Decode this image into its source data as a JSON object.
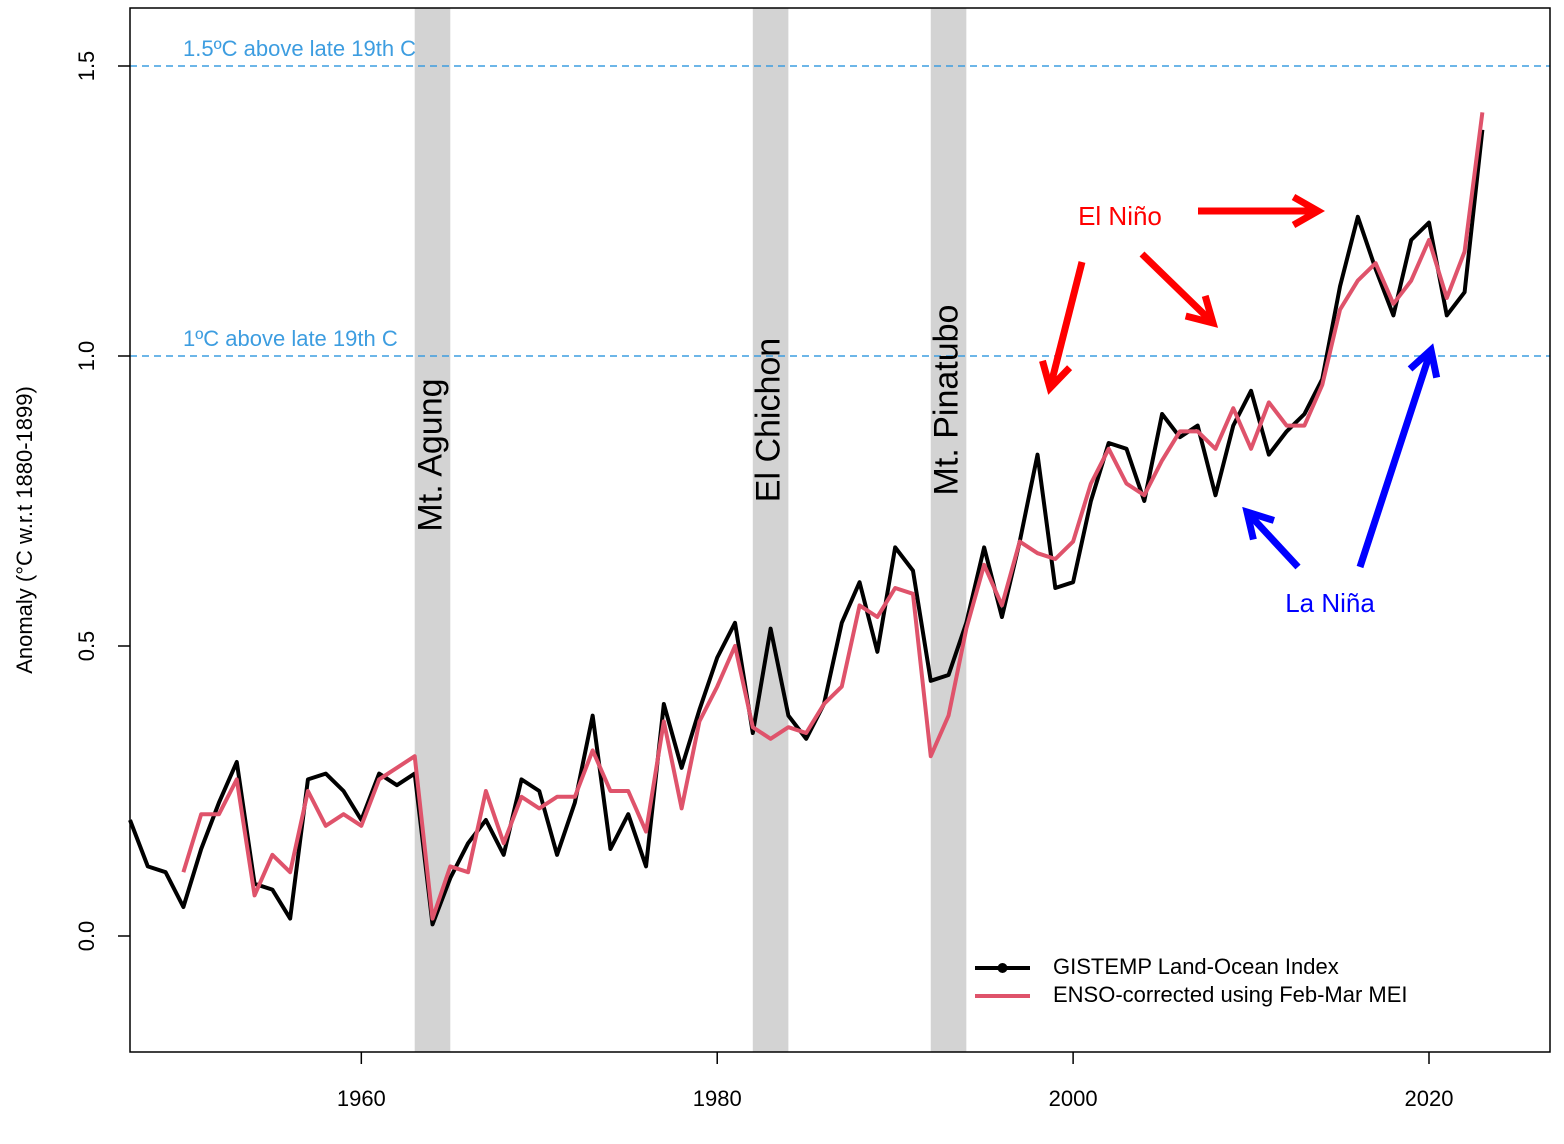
{
  "chart_data": {
    "type": "line",
    "ylabel": "Anomaly (°C w.r.t 1880-1899)",
    "x": [
      1947,
      1948,
      1949,
      1950,
      1951,
      1952,
      1953,
      1954,
      1955,
      1956,
      1957,
      1958,
      1959,
      1960,
      1961,
      1962,
      1963,
      1964,
      1965,
      1966,
      1967,
      1968,
      1969,
      1970,
      1971,
      1972,
      1973,
      1974,
      1975,
      1976,
      1977,
      1978,
      1979,
      1980,
      1981,
      1982,
      1983,
      1984,
      1985,
      1986,
      1987,
      1988,
      1989,
      1990,
      1991,
      1992,
      1993,
      1994,
      1995,
      1996,
      1997,
      1998,
      1999,
      2000,
      2001,
      2002,
      2003,
      2004,
      2005,
      2006,
      2007,
      2008,
      2009,
      2010,
      2011,
      2012,
      2013,
      2014,
      2015,
      2016,
      2017,
      2018,
      2019,
      2020,
      2021,
      2022,
      2023
    ],
    "series": [
      {
        "name": "GISTEMP Land-Ocean Index",
        "color": "#000000",
        "values": [
          0.2,
          0.12,
          0.11,
          0.05,
          0.15,
          0.23,
          0.3,
          0.09,
          0.08,
          0.03,
          0.27,
          0.28,
          0.25,
          0.2,
          0.28,
          0.26,
          0.28,
          0.02,
          0.1,
          0.16,
          0.2,
          0.14,
          0.27,
          0.25,
          0.14,
          0.23,
          0.38,
          0.15,
          0.21,
          0.12,
          0.4,
          0.29,
          0.39,
          0.48,
          0.54,
          0.35,
          0.53,
          0.38,
          0.34,
          0.4,
          0.54,
          0.61,
          0.49,
          0.67,
          0.63,
          0.44,
          0.45,
          0.54,
          0.67,
          0.55,
          0.68,
          0.83,
          0.6,
          0.61,
          0.75,
          0.85,
          0.84,
          0.75,
          0.9,
          0.86,
          0.88,
          0.76,
          0.88,
          0.94,
          0.83,
          0.87,
          0.9,
          0.96,
          1.12,
          1.24,
          1.15,
          1.07,
          1.2,
          1.23,
          1.07,
          1.11,
          1.39
        ]
      },
      {
        "name": "ENSO-corrected using Feb-Mar MEI",
        "color": "#df536b",
        "values": [
          null,
          null,
          null,
          0.11,
          0.21,
          0.21,
          0.27,
          0.07,
          0.14,
          0.11,
          0.25,
          0.19,
          0.21,
          0.19,
          0.27,
          0.29,
          0.31,
          0.03,
          0.12,
          0.11,
          0.25,
          0.16,
          0.24,
          0.22,
          0.24,
          0.24,
          0.32,
          0.25,
          0.25,
          0.18,
          0.37,
          0.22,
          0.37,
          0.43,
          0.5,
          0.36,
          0.34,
          0.36,
          0.35,
          0.4,
          0.43,
          0.57,
          0.55,
          0.6,
          0.59,
          0.31,
          0.38,
          0.53,
          0.64,
          0.57,
          0.68,
          0.66,
          0.65,
          0.68,
          0.78,
          0.84,
          0.78,
          0.76,
          0.82,
          0.87,
          0.87,
          0.84,
          0.91,
          0.84,
          0.92,
          0.88,
          0.88,
          0.95,
          1.08,
          1.13,
          1.16,
          1.09,
          1.13,
          1.2,
          1.1,
          1.18,
          1.42
        ]
      }
    ],
    "xlim": [
      1947,
      2026.8
    ],
    "ylim": [
      -0.2,
      1.6
    ],
    "xticks": [
      1960,
      1980,
      2000,
      2020
    ],
    "yticks": [
      {
        "value": 0,
        "label": "0.0"
      },
      0.5,
      {
        "value": 1,
        "label": "1.0"
      },
      1.5
    ],
    "hlines": [
      {
        "value": 1.5,
        "label": "1.5ºC above late 19th C",
        "color": "#3d9de0"
      },
      {
        "value": 1,
        "label": "1ºC above late 19th C",
        "color": "#3d9de0"
      }
    ],
    "shaded_regions": [
      {
        "start": 1963,
        "end": 1965,
        "label": "Mt. Agung"
      },
      {
        "start": 1982,
        "end": 1984,
        "label": "El Chichon"
      },
      {
        "start": 1992,
        "end": 1994,
        "label": "Mt. Pinatubo"
      }
    ],
    "annotations": [
      {
        "text": "El Niño",
        "color": "#ff0000"
      },
      {
        "text": "La Niña",
        "color": "#0000ff"
      }
    ],
    "legend": "bottom-right"
  }
}
